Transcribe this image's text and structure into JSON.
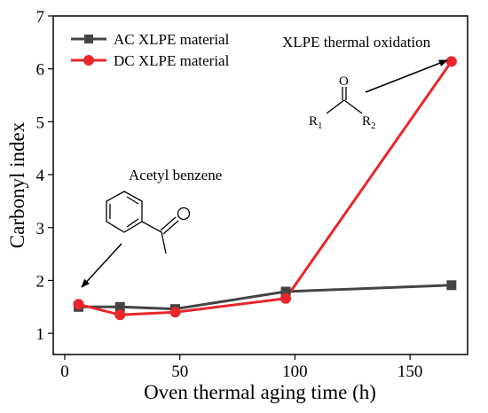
{
  "chart_data": {
    "type": "line",
    "title": "",
    "xlabel": "Oven thermal aging time (h)",
    "ylabel": "Carbonyl index",
    "xlim": [
      -5,
      175
    ],
    "ylim": [
      0.6,
      7
    ],
    "xticks": [
      0,
      50,
      100,
      150
    ],
    "yticks": [
      1,
      2,
      3,
      4,
      5,
      6,
      7
    ],
    "legend_position": "top-left",
    "series": [
      {
        "name": "AC XLPE material",
        "color": "#444444",
        "marker": "square",
        "x": [
          6,
          24,
          48,
          96,
          168
        ],
        "y": [
          1.5,
          1.5,
          1.46,
          1.79,
          1.91
        ]
      },
      {
        "name": "DC XLPE material",
        "color": "#e8262b",
        "marker": "circle",
        "x": [
          6,
          24,
          48,
          96,
          168
        ],
        "y": [
          1.55,
          1.35,
          1.4,
          1.66,
          6.14
        ]
      }
    ],
    "annotations": [
      {
        "text": "Acetyl benzene",
        "structure": "acetyl-benzene"
      },
      {
        "text": "XLPE thermal oxidation",
        "structure": "ketone",
        "r1": "R",
        "r1_sub": "1",
        "r2": "R",
        "r2_sub": "2",
        "o": "O"
      }
    ],
    "grid": false
  }
}
